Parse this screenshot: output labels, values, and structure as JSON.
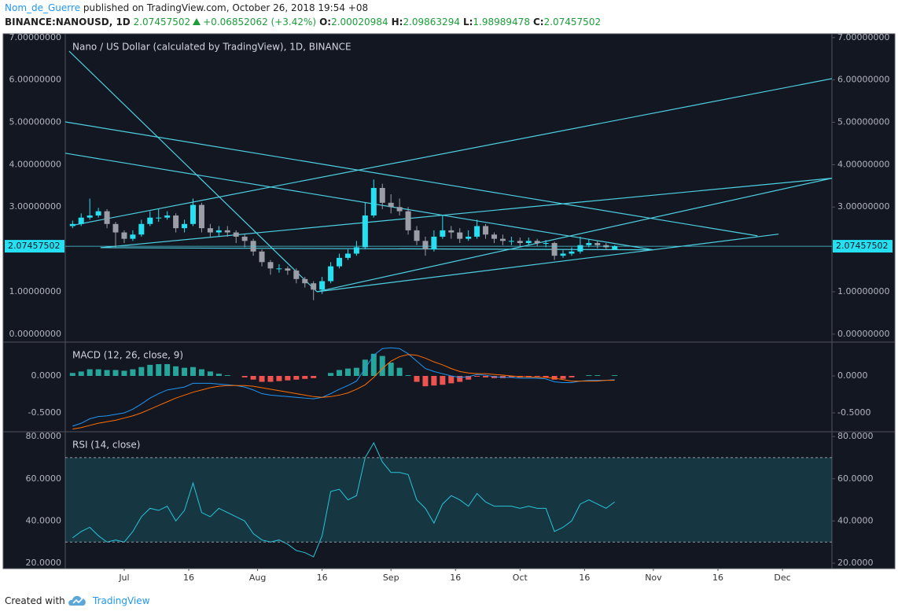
{
  "header": {
    "author": "Nom_de_Guerre",
    "published": "published on TradingView.com, October 26, 2018 19:54 +08",
    "symbol": "BINANCE:NANOUSD, 1D",
    "price": "2.07457502",
    "change": "+0.06852062 (+3.42%)",
    "ohlc": [
      {
        "key": "O:",
        "value": "2.00020984"
      },
      {
        "key": "H:",
        "value": "2.09863294"
      },
      {
        "key": "L:",
        "value": "1.98989478"
      },
      {
        "key": "C:",
        "value": "2.07457502"
      }
    ]
  },
  "footer": {
    "text": "Created with",
    "brand": "TradingView"
  },
  "chart_data": [
    {
      "type": "candlestick",
      "title": "Nano / US Dollar (calculated by TradingView), 1D, BINANCE",
      "up_color": "#26e0f2",
      "down_color": "#9b9ea6",
      "line_color": "#4dd0e1",
      "x": [
        -12,
        -10,
        -8,
        -6,
        -4,
        -2,
        0,
        2,
        4,
        6,
        8,
        10,
        12,
        14,
        16,
        18,
        20,
        22,
        24,
        26,
        28,
        30,
        32,
        34,
        36,
        38,
        40,
        42,
        44,
        46,
        48,
        50,
        52,
        54,
        56,
        58,
        60,
        62,
        64,
        66,
        68,
        70,
        72,
        74,
        76,
        78,
        80,
        82,
        84,
        86,
        88,
        90,
        92,
        94,
        96,
        98,
        100,
        102,
        104,
        106,
        108,
        110,
        112,
        114
      ],
      "open": [
        2.55,
        2.6,
        2.75,
        2.8,
        2.9,
        2.6,
        2.4,
        2.25,
        2.35,
        2.6,
        2.75,
        2.75,
        2.8,
        2.5,
        2.6,
        3.05,
        2.5,
        2.4,
        2.45,
        2.4,
        2.3,
        2.2,
        1.95,
        1.7,
        1.55,
        1.55,
        1.5,
        1.3,
        1.2,
        1.05,
        1.25,
        1.6,
        1.8,
        1.9,
        2.05,
        2.8,
        3.45,
        3.1,
        3.0,
        2.9,
        2.45,
        2.2,
        2.0,
        2.3,
        2.45,
        2.4,
        2.25,
        2.3,
        2.55,
        2.35,
        2.25,
        2.2,
        2.2,
        2.15,
        2.2,
        2.15,
        2.15,
        1.85,
        1.9,
        1.95,
        2.1,
        2.15,
        2.1,
        2.0
      ],
      "high": [
        2.68,
        2.85,
        3.2,
        2.98,
        2.95,
        2.65,
        2.45,
        2.45,
        2.7,
        2.9,
        2.95,
        2.9,
        2.85,
        2.7,
        3.2,
        3.1,
        2.6,
        2.55,
        2.55,
        2.45,
        2.35,
        2.25,
        2.0,
        1.75,
        1.65,
        1.6,
        1.55,
        1.35,
        1.25,
        1.35,
        1.7,
        1.9,
        2.0,
        2.2,
        3.1,
        3.65,
        3.55,
        3.3,
        3.2,
        3.0,
        2.55,
        2.3,
        2.45,
        2.8,
        2.55,
        2.5,
        2.45,
        2.7,
        2.6,
        2.4,
        2.35,
        2.3,
        2.28,
        2.28,
        2.25,
        2.22,
        2.18,
        1.98,
        2.05,
        2.3,
        2.25,
        2.2,
        2.15,
        2.1
      ],
      "low": [
        2.5,
        2.55,
        2.7,
        2.75,
        2.5,
        2.05,
        2.15,
        2.2,
        2.3,
        2.55,
        2.65,
        2.7,
        2.4,
        2.4,
        2.55,
        2.4,
        2.3,
        2.3,
        2.3,
        2.15,
        2.05,
        1.85,
        1.6,
        1.4,
        1.45,
        1.4,
        1.2,
        1.1,
        0.8,
        0.95,
        1.2,
        1.55,
        1.75,
        1.85,
        2.0,
        2.75,
        2.95,
        2.85,
        2.8,
        2.35,
        2.1,
        1.85,
        1.95,
        2.25,
        2.25,
        2.15,
        2.2,
        2.25,
        2.25,
        2.15,
        2.1,
        2.1,
        2.08,
        2.1,
        2.08,
        2.05,
        1.75,
        1.8,
        1.85,
        1.9,
        2.05,
        2.02,
        2.0,
        1.99
      ],
      "close": [
        2.6,
        2.75,
        2.8,
        2.9,
        2.6,
        2.4,
        2.25,
        2.35,
        2.6,
        2.75,
        2.75,
        2.8,
        2.5,
        2.6,
        3.05,
        2.5,
        2.4,
        2.45,
        2.4,
        2.3,
        2.2,
        1.95,
        1.7,
        1.55,
        1.55,
        1.5,
        1.3,
        1.2,
        1.05,
        1.25,
        1.6,
        1.8,
        1.9,
        2.05,
        2.8,
        3.45,
        3.1,
        3.0,
        2.9,
        2.45,
        2.2,
        2.0,
        2.3,
        2.45,
        2.4,
        2.25,
        2.3,
        2.55,
        2.35,
        2.25,
        2.2,
        2.2,
        2.15,
        2.2,
        2.15,
        2.15,
        1.85,
        1.9,
        1.95,
        2.1,
        2.15,
        2.1,
        2.05,
        2.07
      ],
      "last_price": 2.07457502,
      "trendlines": [
        {
          "x": [
            -12.8,
            44.8
          ],
          "y": [
            6.68,
            1.0
          ]
        },
        {
          "x": [
            -13.7,
            147.2
          ],
          "y": [
            5.01,
            2.32
          ]
        },
        {
          "x": [
            -13.7,
            122.9
          ],
          "y": [
            4.27,
            1.99
          ]
        },
        {
          "x": [
            -12.4,
            164.5
          ],
          "y": [
            2.56,
            6.03
          ]
        },
        {
          "x": [
            -5.5,
            164.5
          ],
          "y": [
            2.04,
            3.68
          ]
        },
        {
          "x": [
            44.8,
            164.5
          ],
          "y": [
            1.0,
            3.68
          ]
        },
        {
          "x": [
            44.8,
            152.1
          ],
          "y": [
            1.0,
            2.36
          ]
        },
        {
          "x": [
            -5.5,
            122.9
          ],
          "y": [
            2.04,
            1.99
          ]
        }
      ],
      "ylim": [
        -0.17,
        7.07
      ],
      "yticks": [
        {
          "value": 0,
          "label": "0.00000000"
        },
        {
          "value": 1,
          "label": "1.00000000"
        },
        {
          "value": 3,
          "label": "3.00000000"
        },
        {
          "value": 4,
          "label": "4.00000000"
        },
        {
          "value": 5,
          "label": "5.00000000"
        },
        {
          "value": 6,
          "label": "6.00000000"
        },
        {
          "value": 7,
          "label": "7.00000000"
        }
      ]
    },
    {
      "type": "macd",
      "title": "MACD (12, 26, close, 9)",
      "macd_color": "#2196f3",
      "signal_color": "#ff6d00",
      "up_color": "#26a69a",
      "down_color": "#ef5350",
      "x": [
        -12,
        -10,
        -8,
        -6,
        -4,
        -2,
        0,
        2,
        4,
        6,
        8,
        10,
        12,
        14,
        16,
        18,
        20,
        22,
        24,
        26,
        28,
        30,
        32,
        34,
        36,
        38,
        40,
        42,
        44,
        46,
        48,
        50,
        52,
        54,
        56,
        58,
        60,
        62,
        64,
        66,
        68,
        70,
        72,
        74,
        76,
        78,
        80,
        82,
        84,
        86,
        88,
        90,
        92,
        94,
        96,
        98,
        100,
        102,
        104,
        106,
        108,
        110,
        112,
        114
      ],
      "macd": [
        -0.68,
        -0.64,
        -0.58,
        -0.55,
        -0.54,
        -0.52,
        -0.5,
        -0.45,
        -0.38,
        -0.3,
        -0.24,
        -0.19,
        -0.17,
        -0.15,
        -0.1,
        -0.1,
        -0.1,
        -0.11,
        -0.12,
        -0.13,
        -0.15,
        -0.19,
        -0.24,
        -0.26,
        -0.27,
        -0.28,
        -0.29,
        -0.3,
        -0.31,
        -0.29,
        -0.24,
        -0.18,
        -0.13,
        -0.07,
        0.1,
        0.28,
        0.37,
        0.38,
        0.37,
        0.3,
        0.2,
        0.1,
        0.06,
        0.03,
        0.0,
        -0.02,
        -0.01,
        0.02,
        0.01,
        -0.01,
        -0.02,
        -0.02,
        -0.03,
        -0.03,
        -0.03,
        -0.04,
        -0.08,
        -0.09,
        -0.09,
        -0.07,
        -0.06,
        -0.06,
        -0.06,
        -0.05
      ],
      "signal": [
        -0.72,
        -0.7,
        -0.67,
        -0.64,
        -0.62,
        -0.6,
        -0.57,
        -0.54,
        -0.5,
        -0.45,
        -0.4,
        -0.35,
        -0.3,
        -0.26,
        -0.22,
        -0.19,
        -0.16,
        -0.14,
        -0.13,
        -0.13,
        -0.13,
        -0.14,
        -0.16,
        -0.18,
        -0.2,
        -0.22,
        -0.24,
        -0.26,
        -0.28,
        -0.29,
        -0.28,
        -0.26,
        -0.23,
        -0.18,
        -0.12,
        -0.02,
        0.1,
        0.2,
        0.26,
        0.29,
        0.28,
        0.24,
        0.19,
        0.15,
        0.1,
        0.06,
        0.04,
        0.03,
        0.03,
        0.02,
        0.01,
        0.0,
        -0.01,
        -0.01,
        -0.02,
        -0.02,
        -0.03,
        -0.05,
        -0.07,
        -0.07,
        -0.07,
        -0.07,
        -0.06,
        -0.06
      ],
      "histogram": [
        0.04,
        0.06,
        0.09,
        0.09,
        0.08,
        0.08,
        0.07,
        0.09,
        0.12,
        0.15,
        0.16,
        0.16,
        0.13,
        0.11,
        0.12,
        0.09,
        0.06,
        0.03,
        0.01,
        0.0,
        -0.02,
        -0.05,
        -0.08,
        -0.08,
        -0.07,
        -0.06,
        -0.05,
        -0.04,
        -0.03,
        0.0,
        0.04,
        0.08,
        0.1,
        0.11,
        0.22,
        0.3,
        0.27,
        0.18,
        0.11,
        0.01,
        -0.08,
        -0.14,
        -0.13,
        -0.12,
        -0.1,
        -0.08,
        -0.05,
        -0.01,
        -0.02,
        -0.03,
        -0.03,
        -0.02,
        -0.02,
        -0.02,
        -0.01,
        -0.02,
        -0.05,
        -0.04,
        -0.02,
        0.0,
        0.01,
        0.01,
        0.0,
        0.01
      ],
      "ylim": [
        -0.745,
        0.447
      ],
      "yticks": [
        {
          "value": 0,
          "label": "0.0000"
        },
        {
          "value": -0.5,
          "label": "-0.5000"
        }
      ]
    },
    {
      "type": "rsi",
      "title": "RSI (14, close)",
      "color": "#26c6da",
      "band": [
        30,
        70
      ],
      "x": [
        -12,
        -10,
        -8,
        -6,
        -4,
        -2,
        0,
        2,
        4,
        6,
        8,
        10,
        12,
        14,
        16,
        18,
        20,
        22,
        24,
        26,
        28,
        30,
        32,
        34,
        36,
        38,
        40,
        42,
        44,
        46,
        48,
        50,
        52,
        54,
        56,
        58,
        60,
        62,
        64,
        66,
        68,
        70,
        72,
        74,
        76,
        78,
        80,
        82,
        84,
        86,
        88,
        90,
        92,
        94,
        96,
        98,
        100,
        102,
        104,
        106,
        108,
        110,
        112,
        114
      ],
      "values": [
        32,
        35,
        37,
        33,
        30,
        31,
        30,
        35,
        42,
        46,
        45,
        47,
        40,
        45,
        58,
        44,
        42,
        46,
        44,
        42,
        40,
        34,
        31,
        30,
        31,
        29,
        26,
        25,
        23,
        33,
        54,
        55,
        50,
        52,
        70,
        77,
        68,
        63,
        63,
        62,
        50,
        46,
        39,
        48,
        52,
        50,
        47,
        53,
        49,
        47,
        47,
        47,
        46,
        47,
        46,
        46,
        35,
        37,
        40,
        48,
        50,
        48,
        46,
        49
      ],
      "ylim": [
        17.8,
        81.9
      ],
      "yticks": [
        {
          "value": 20,
          "label": "20.0000"
        },
        {
          "value": 40,
          "label": "40.0000"
        },
        {
          "value": 60,
          "label": "60.0000"
        },
        {
          "value": 80,
          "label": "80.0000"
        }
      ],
      "xlim": [
        -13.7,
        164.5
      ],
      "xticks": [
        {
          "value": 0,
          "label": "Jul"
        },
        {
          "value": 15,
          "label": "16"
        },
        {
          "value": 31,
          "label": "Aug"
        },
        {
          "value": 46,
          "label": "16"
        },
        {
          "value": 62,
          "label": "Sep"
        },
        {
          "value": 77,
          "label": "16"
        },
        {
          "value": 92,
          "label": "Oct"
        },
        {
          "value": 107,
          "label": "16"
        },
        {
          "value": 123,
          "label": "Nov"
        },
        {
          "value": 138,
          "label": "16"
        },
        {
          "value": 153,
          "label": "Dec"
        }
      ]
    }
  ]
}
